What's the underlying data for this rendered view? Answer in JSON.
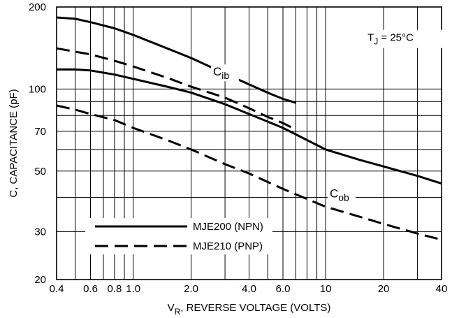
{
  "chart_data": {
    "type": "line",
    "xlabel": {
      "main": "V",
      "sub": "R",
      "rest": ", REVERSE VOLTAGE (VOLTS)"
    },
    "ylabel": "C, CAPACITANCE (pF)",
    "x_scale": "log",
    "y_scale": "log",
    "xlim": [
      0.4,
      40
    ],
    "ylim": [
      20,
      200
    ],
    "grid": true,
    "x_ticks": [
      {
        "value": 0.4,
        "label": "0.4"
      },
      {
        "value": 0.6,
        "label": "0.6"
      },
      {
        "value": 0.8,
        "label": "0.8"
      },
      {
        "value": 1.0,
        "label": "1.0"
      },
      {
        "value": 2.0,
        "label": "2.0"
      },
      {
        "value": 4.0,
        "label": "4.0"
      },
      {
        "value": 6.0,
        "label": "6.0"
      },
      {
        "value": 10,
        "label": "10"
      },
      {
        "value": 20,
        "label": "20"
      },
      {
        "value": 40,
        "label": "40"
      }
    ],
    "y_ticks": [
      {
        "value": 20,
        "label": "20"
      },
      {
        "value": 30,
        "label": "30"
      },
      {
        "value": 50,
        "label": "50"
      },
      {
        "value": 70,
        "label": "70"
      },
      {
        "value": 100,
        "label": "100"
      },
      {
        "value": 200,
        "label": "200"
      }
    ],
    "x_grid": [
      0.4,
      0.5,
      0.6,
      0.7,
      0.8,
      0.9,
      1,
      2,
      3,
      4,
      5,
      6,
      7,
      8,
      9,
      10,
      20,
      30,
      40
    ],
    "y_grid": [
      20,
      30,
      40,
      50,
      60,
      70,
      80,
      90,
      100,
      200
    ],
    "annotation": {
      "main": "T",
      "sub": "J",
      "rest": " = 25°C"
    },
    "series": [
      {
        "name": "MJE200 (NPN)",
        "label": "C",
        "label_sub": "ib",
        "dash": "solid",
        "x": [
          0.4,
          0.5,
          0.6,
          0.8,
          1.0,
          1.5,
          2.0,
          3.0,
          4.0,
          5.0,
          6.0,
          7.0
        ],
        "y": [
          183,
          181,
          176,
          167,
          158,
          141,
          130,
          114,
          104,
          97,
          92,
          89
        ]
      },
      {
        "name": "MJE210 (PNP)",
        "label": "C",
        "label_sub": "ib",
        "dash": "dashed",
        "x": [
          0.4,
          0.6,
          0.8,
          1.0,
          1.5,
          2.0,
          3.0,
          4.0,
          5.0,
          6.0,
          7.0
        ],
        "y": [
          141,
          134,
          127,
          121,
          110,
          102,
          93,
          85,
          79,
          75,
          71
        ]
      },
      {
        "name": "MJE200 (NPN)",
        "label": "C",
        "label_sub": "ob",
        "dash": "solid",
        "x": [
          0.4,
          0.5,
          0.6,
          0.8,
          1.0,
          1.5,
          2.0,
          3.0,
          4.0,
          6.0,
          10,
          15,
          20,
          30,
          40
        ],
        "y": [
          118,
          118,
          117,
          113,
          109,
          102,
          97,
          88,
          81,
          72,
          60,
          55,
          52,
          48,
          45
        ]
      },
      {
        "name": "MJE210 (PNP)",
        "label": "C",
        "label_sub": "ob",
        "dash": "dashed",
        "x": [
          0.4,
          0.5,
          0.6,
          0.8,
          1.0,
          1.5,
          2.0,
          3.0,
          4.0,
          6.0,
          10,
          15,
          20,
          30,
          40
        ],
        "y": [
          87,
          84,
          81,
          77,
          72,
          65,
          60,
          53,
          49,
          43,
          37,
          34,
          32,
          29.5,
          28
        ]
      }
    ],
    "legend": {
      "placement": "bottom-left",
      "entries": [
        {
          "label": "MJE200 (NPN)",
          "dash": "solid"
        },
        {
          "label": "MJE210 (PNP)",
          "dash": "dashed"
        }
      ]
    },
    "curve_labels": [
      {
        "main": "C",
        "sub": "ib",
        "at": [
          2.6,
          112
        ]
      },
      {
        "main": "C",
        "sub": "ob",
        "at": [
          10.5,
          40
        ]
      }
    ]
  }
}
